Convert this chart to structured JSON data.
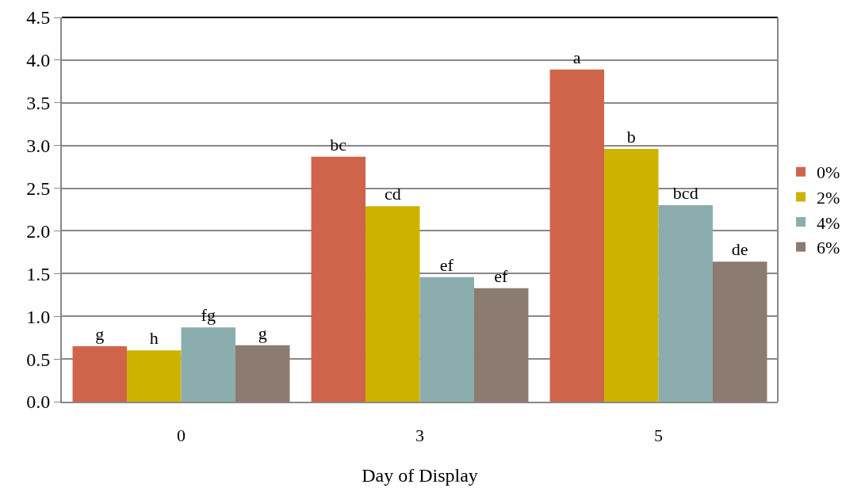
{
  "chart_data": {
    "type": "bar",
    "xlabel": "Day of Display",
    "categories": [
      "0",
      "3",
      "5"
    ],
    "series": [
      {
        "name": "0%",
        "color": "#d0644a",
        "values": [
          0.65,
          2.87,
          3.89
        ],
        "value_labels": [
          "g",
          "bc",
          "a"
        ]
      },
      {
        "name": "2%",
        "color": "#cdb300",
        "values": [
          0.6,
          2.29,
          2.96
        ],
        "value_labels": [
          "h",
          "cd",
          "b"
        ]
      },
      {
        "name": "4%",
        "color": "#8cadae",
        "values": [
          0.87,
          1.46,
          2.3
        ],
        "value_labels": [
          "fg",
          "ef",
          "bcd"
        ]
      },
      {
        "name": "6%",
        "color": "#8b7b70",
        "values": [
          0.66,
          1.33,
          1.64
        ],
        "value_labels": [
          "g",
          "ef",
          "de"
        ]
      }
    ],
    "ylim": [
      0,
      4.5
    ],
    "yticks": [
      {
        "value": 0,
        "label": "0.0"
      },
      0.5,
      {
        "value": 1,
        "label": "1.0"
      },
      1.5,
      {
        "value": 2,
        "label": "2.0"
      },
      2.5,
      {
        "value": 3,
        "label": "3.0"
      },
      3.5,
      {
        "value": 4,
        "label": "4.0"
      },
      4.5
    ],
    "grid": "y",
    "legend": "right"
  }
}
